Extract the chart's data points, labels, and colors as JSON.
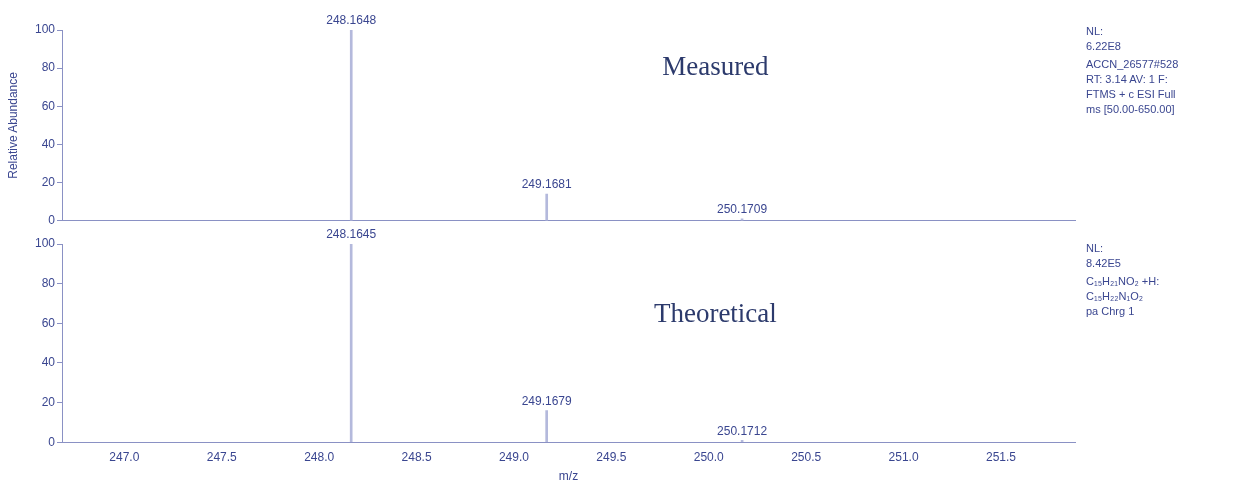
{
  "chart_data": [
    {
      "type": "bar",
      "title": "Measured",
      "ylabel": "Relative Abundance",
      "x": [
        248.1648,
        249.1681,
        250.1709
      ],
      "series": [
        {
          "color": "#b4b9dc",
          "values": [
            100,
            14,
            1
          ]
        }
      ],
      "xlim": [
        246.68,
        251.88
      ],
      "ylim": [
        0,
        100
      ],
      "yticks": [
        0,
        20,
        40,
        60,
        80,
        100
      ],
      "tick_labels": "y",
      "grid": false,
      "legend": false,
      "annotations": [
        {
          "text": "248.1648",
          "x": 248.1648,
          "y": 100
        },
        {
          "text": "249.1681",
          "x": 249.1681,
          "y": 14
        },
        {
          "text": "250.1709",
          "x": 250.1709,
          "y": 1
        },
        "NL:",
        "6.22E8",
        "ACCN_26577#528",
        "RT: 3.14  AV: 1 F:",
        "FTMS + c ESI Full",
        "ms [50.00-650.00]"
      ]
    },
    {
      "type": "bar",
      "title": "Theoretical",
      "xlabel": "m/z",
      "x": [
        248.1645,
        249.1679,
        250.1712
      ],
      "series": [
        {
          "color": "#b4b9dc",
          "values": [
            100,
            16,
            1
          ]
        }
      ],
      "xlim": [
        246.68,
        251.88
      ],
      "ylim": [
        0,
        100
      ],
      "xticks": [
        {
          "value": 247,
          "label": "247.0"
        },
        {
          "value": 247.5,
          "label": "247.5"
        },
        {
          "value": 248,
          "label": "248.0"
        },
        {
          "value": 248.5,
          "label": "248.5"
        },
        {
          "value": 249,
          "label": "249.0"
        },
        {
          "value": 249.5,
          "label": "249.5"
        },
        {
          "value": 250,
          "label": "250.0"
        },
        {
          "value": 250.5,
          "label": "250.5"
        },
        {
          "value": 251,
          "label": "251.0"
        },
        {
          "value": 251.5,
          "label": "251.5"
        }
      ],
      "yticks": [
        0,
        20,
        40,
        60,
        80,
        100
      ],
      "grid": false,
      "legend": false,
      "annotations": [
        {
          "text": "248.1645",
          "x": 248.1645,
          "y": 100
        },
        {
          "text": "249.1679",
          "x": 249.1679,
          "y": 16
        },
        {
          "text": "250.1712",
          "x": 250.1712,
          "y": 1
        },
        "NL:",
        "8.42E5",
        "C₁₅H₂₁NO₂ +H:",
        "C₁₅H₂₂N₁O₂",
        "pa Chrg 1"
      ]
    }
  ]
}
